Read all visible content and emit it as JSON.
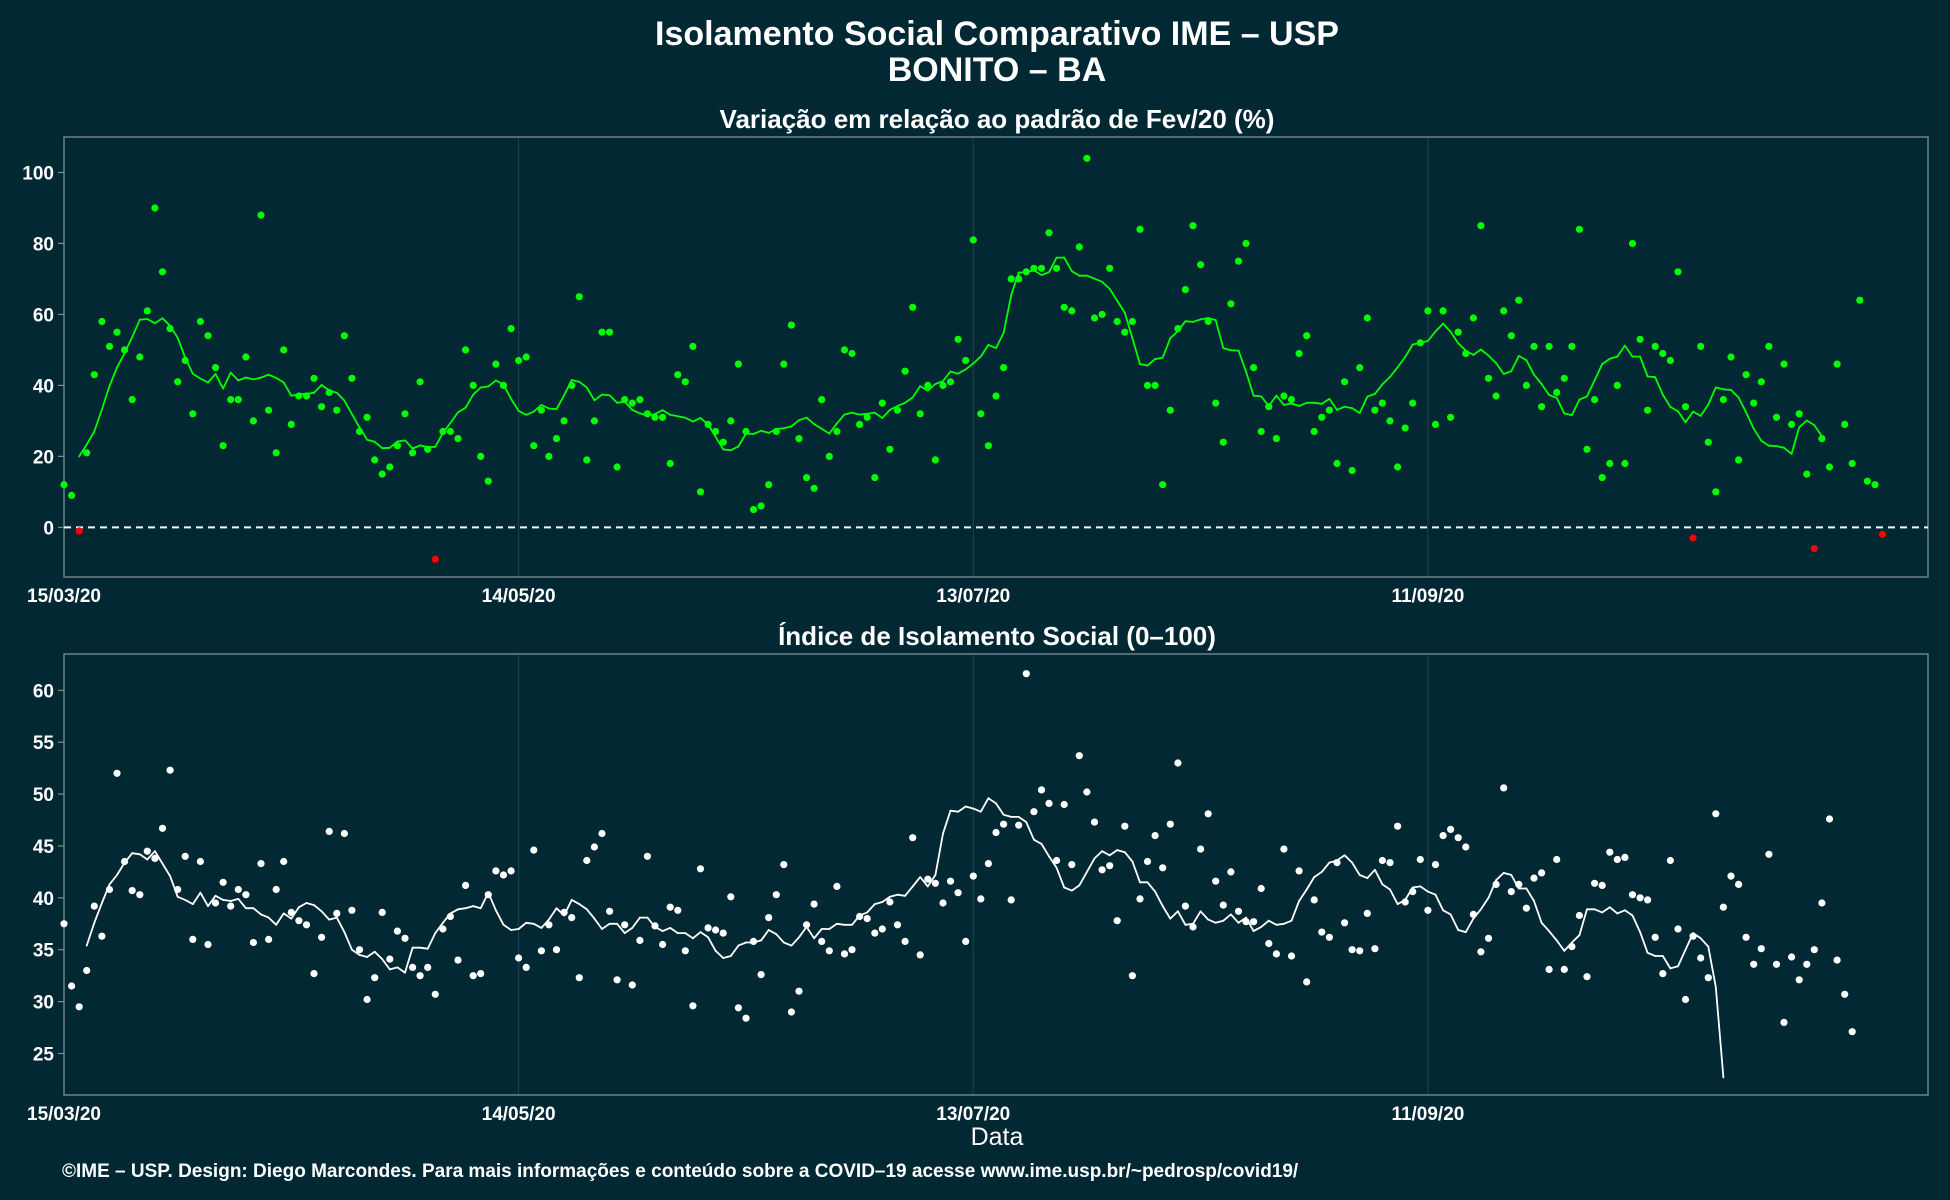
{
  "header": {
    "title_line1": "Isolamento Social Comparativo IME – USP",
    "title_line2": "BONITO – BA"
  },
  "footer": {
    "credit": "©IME – USP. Design: Diego Marcondes. Para mais informações e conteúdo sobre a COVID–19 acesse www.ime.usp.br/~pedrosp/covid19/"
  },
  "x_axis": {
    "label": "Data",
    "start_date": "2020-03-15",
    "end_date": "2020-11-16",
    "ticks": [
      {
        "date": "2020-03-15",
        "label": "15/03/20"
      },
      {
        "date": "2020-05-14",
        "label": "14/05/20"
      },
      {
        "date": "2020-07-13",
        "label": "13/07/20"
      },
      {
        "date": "2020-09-11",
        "label": "11/09/20"
      }
    ]
  },
  "colors": {
    "background": "#022833",
    "frame": "#7f8f96",
    "grid": "#1d4450",
    "positive": "#00ff00",
    "negative": "#ff0000",
    "index_series": "#ffffff",
    "zero_line": "#ffffff"
  },
  "chart_data": [
    {
      "type": "scatter",
      "title": "Variação em relação ao padrão de Fev/20 (%)",
      "xlabel": "",
      "ylabel": "",
      "ylim": [
        -14,
        110
      ],
      "yticks": [
        0,
        20,
        40,
        60,
        80,
        100
      ],
      "zero_reference_line": 0,
      "x_start": "2020-03-15",
      "point_series": [
        12,
        9,
        -1,
        21,
        43,
        58,
        51,
        55,
        50,
        36,
        48,
        61,
        90,
        72,
        56,
        41,
        47,
        32,
        58,
        54,
        45,
        23,
        36,
        36,
        48,
        30,
        88,
        33,
        21,
        50,
        29,
        37,
        37,
        42,
        34,
        38,
        33,
        54,
        42,
        27,
        31,
        19,
        15,
        17,
        23,
        32,
        21,
        41,
        22,
        -9,
        27,
        27,
        25,
        50,
        40,
        20,
        13,
        46,
        40,
        56,
        47,
        48,
        23,
        33,
        20,
        25,
        30,
        40,
        65,
        19,
        30,
        55,
        55,
        17,
        36,
        35,
        36,
        32,
        31,
        31,
        18,
        43,
        41,
        51,
        10,
        29,
        27,
        24,
        30,
        46,
        27,
        5,
        6,
        12,
        27,
        46,
        57,
        25,
        14,
        11,
        36,
        20,
        27,
        50,
        49,
        29,
        31,
        14,
        35,
        22,
        33,
        44,
        62,
        32,
        40,
        19,
        40,
        41,
        53,
        47,
        81,
        32,
        23,
        37,
        45,
        70,
        70,
        72,
        73,
        73,
        83,
        73,
        62,
        61,
        79,
        104,
        59,
        60,
        73,
        58,
        55,
        58,
        84,
        40,
        40,
        12,
        33,
        56,
        67,
        85,
        74,
        58,
        35,
        24,
        63,
        75,
        80,
        45,
        27,
        34,
        25,
        37,
        36,
        49,
        54,
        27,
        31,
        33,
        18,
        41,
        16,
        45,
        59,
        33,
        35,
        30,
        17,
        28,
        35,
        52,
        61,
        29,
        61,
        31,
        55,
        49,
        59,
        85,
        42,
        37,
        61,
        54,
        64,
        40,
        51,
        34,
        51,
        38,
        42,
        51,
        84,
        22,
        36,
        14,
        18,
        40,
        18,
        80,
        53,
        33,
        51,
        49,
        47,
        72,
        34,
        -3,
        51,
        24,
        10,
        36,
        48,
        19,
        43,
        35,
        41,
        51,
        31,
        46,
        29,
        32,
        15,
        -6,
        25,
        17,
        46,
        29,
        18,
        64,
        13,
        12,
        -2
      ],
      "moving_average_start_index": 2,
      "moving_average": [
        20.0,
        23.3,
        27.0,
        33.2,
        39.8,
        45.0,
        49.1,
        53.6,
        58.5,
        58.7,
        57.5,
        58.9,
        56.8,
        53.4,
        47.8,
        43.3,
        41.9,
        40.8,
        43.2,
        39.1,
        43.6,
        41.4,
        42.2,
        41.7,
        42.2,
        43.0,
        42.1,
        40.8,
        37.1,
        37.5,
        37.6,
        37.9,
        40.1,
        38.6,
        37.9,
        35.7,
        31.9,
        28.2,
        24.7,
        24.1,
        22.3,
        22.4,
        24.2,
        24.5,
        22.2,
        23.1,
        22.6,
        22.7,
        26.6,
        29.4,
        32.4,
        33.7,
        37.4,
        39.4,
        39.7,
        41.4,
        40.2,
        36.2,
        32.8,
        31.7,
        32.6,
        34.5,
        33.5,
        33.3,
        37.2,
        41.5,
        41.0,
        39.4,
        35.8,
        37.4,
        37.2,
        35.1,
        35.4,
        33.1,
        32.1,
        31.5,
        31.9,
        33.0,
        31.7,
        31.3,
        30.9,
        29.8,
        30.8,
        29.0,
        25.5,
        22.0,
        21.7,
        22.8,
        26.4,
        26.3,
        27.2,
        26.6,
        27.7,
        27.9,
        28.4,
        30.2,
        30.9,
        29.1,
        27.8,
        26.4,
        29.3,
        31.8,
        32.3,
        31.8,
        32.0,
        32.3,
        30.8,
        33.1,
        34.2,
        35.1,
        36.6,
        39.8,
        38.5,
        40.4,
        41.2,
        43.9,
        43.3,
        44.5,
        46.2,
        48.1,
        51.4,
        50.5,
        54.8,
        65.4,
        71.8,
        71.8,
        72.5,
        71.1,
        71.9,
        76.0,
        76.0,
        72.2,
        70.9,
        70.9,
        70.1,
        69.2,
        67.2,
        63.8,
        60.5,
        53.3,
        46.0,
        45.6,
        47.4,
        47.8,
        53.3,
        55.3,
        58.1,
        57.9,
        58.6,
        59.0,
        58.4,
        50.5,
        49.9,
        49.8,
        43.9,
        37.1,
        36.9,
        34.2,
        37.1,
        34.5,
        34.9,
        34.2,
        35.1,
        35.1,
        34.8,
        36.2,
        33.1,
        34.0,
        33.6,
        32.2,
        36.8,
        37.6,
        40.3,
        42.4,
        45.1,
        48.0,
        51.5,
        52.0,
        52.5,
        55.2,
        57.4,
        55.1,
        51.9,
        49.8,
        48.6,
        50.1,
        48.4,
        46.3,
        43.2,
        44.0,
        48.3,
        47.1,
        43.0,
        40.4,
        37.3,
        36.5,
        32.1,
        31.6,
        36.0,
        36.9,
        41.4,
        46.0,
        47.5,
        48.1,
        51.2,
        48.1,
        48.1,
        42.5,
        42.3,
        37.4,
        33.9,
        32.7,
        29.6,
        32.6,
        31.4,
        34.6,
        39.4,
        38.9,
        38.7,
        36.6,
        32.4,
        27.8,
        24.4,
        23.0,
        22.9,
        22.4,
        20.7,
        28.2,
        30.1,
        28.8,
        25.7
      ]
    },
    {
      "type": "scatter",
      "title": "Índice de Isolamento Social (0–100)",
      "xlabel": "Data",
      "ylabel": "",
      "ylim": [
        21,
        63.5
      ],
      "yticks": [
        25,
        30,
        35,
        40,
        45,
        50,
        55,
        60
      ],
      "x_start": "2020-03-15",
      "point_series": [
        37.5,
        31.5,
        29.5,
        33.0,
        39.2,
        36.3,
        40.8,
        52.0,
        43.5,
        40.7,
        40.3,
        44.5,
        43.8,
        46.7,
        52.3,
        40.8,
        44.0,
        36.0,
        43.5,
        35.5,
        39.5,
        41.5,
        39.2,
        40.8,
        40.3,
        35.7,
        43.3,
        36.0,
        40.8,
        43.5,
        38.6,
        37.8,
        37.4,
        32.7,
        36.2,
        46.4,
        38.5,
        46.2,
        38.8,
        35.0,
        30.2,
        32.3,
        38.6,
        34.1,
        36.8,
        36.1,
        33.3,
        32.5,
        33.3,
        30.7,
        37.0,
        38.2,
        34.0,
        41.2,
        32.5,
        32.7,
        40.3,
        42.6,
        42.2,
        42.6,
        34.2,
        33.3,
        44.6,
        34.9,
        37.4,
        35.0,
        38.6,
        38.1,
        32.3,
        43.6,
        44.9,
        46.2,
        38.7,
        32.1,
        37.4,
        31.6,
        35.9,
        44.0,
        37.3,
        35.5,
        39.1,
        38.8,
        34.9,
        29.6,
        42.8,
        37.1,
        36.9,
        36.6,
        40.1,
        29.4,
        28.4,
        35.8,
        32.6,
        38.1,
        40.3,
        43.2,
        29.0,
        31.0,
        37.4,
        39.4,
        35.8,
        34.9,
        41.1,
        34.6,
        35.0,
        38.2,
        38.0,
        36.6,
        37.0,
        39.6,
        37.4,
        35.8,
        45.8,
        34.5,
        41.8,
        41.4,
        39.5,
        41.6,
        40.5,
        35.8,
        42.1,
        39.9,
        43.3,
        46.3,
        47.1,
        39.8,
        47.0,
        61.6,
        48.3,
        50.4,
        49.1,
        43.6,
        49.0,
        43.2,
        53.7,
        50.2,
        47.3,
        42.7,
        43.1,
        37.8,
        46.9,
        32.5,
        39.9,
        43.5,
        46.0,
        42.9,
        47.1,
        53.0,
        39.2,
        37.2,
        44.7,
        48.1,
        41.6,
        39.3,
        42.5,
        38.7,
        37.7,
        37.7,
        40.9,
        35.6,
        34.6,
        44.7,
        34.4,
        42.6,
        31.9,
        39.8,
        36.7,
        36.2,
        43.4,
        37.6,
        35.0,
        34.9,
        38.5,
        35.1,
        43.6,
        43.4,
        46.9,
        39.6,
        40.6,
        43.7,
        38.8,
        43.2,
        46.0,
        46.6,
        45.8,
        44.9,
        38.4,
        34.8,
        36.1,
        41.3,
        50.6,
        40.6,
        41.3,
        39.0,
        41.9,
        42.4,
        33.1,
        43.7,
        33.1,
        35.3,
        38.3,
        32.4,
        41.4,
        41.2,
        44.4,
        43.7,
        43.9,
        40.3,
        40.0,
        39.8,
        36.2,
        32.7,
        43.6,
        37.0,
        30.2,
        36.3,
        34.2,
        32.3,
        48.1,
        39.1,
        42.1,
        41.3,
        36.2,
        33.6,
        35.1,
        44.2,
        33.6,
        28.0,
        34.3,
        32.1,
        33.6,
        35.0,
        39.5,
        47.6,
        34.0,
        30.7,
        27.1
      ],
      "moving_average_start_index": 3,
      "moving_average": [
        35.4,
        37.6,
        39.5,
        41.3,
        42.2,
        43.4,
        44.3,
        44.2,
        43.7,
        44.5,
        43.3,
        42.1,
        40.1,
        39.8,
        39.4,
        40.5,
        39.2,
        40.2,
        39.8,
        39.7,
        39.9,
        39.0,
        39.0,
        38.4,
        38.1,
        37.4,
        38.5,
        38.0,
        39.1,
        39.5,
        39.3,
        38.7,
        37.9,
        38.1,
        36.7,
        35.0,
        34.5,
        34.3,
        34.8,
        34.1,
        33.1,
        33.3,
        32.8,
        35.2,
        35.2,
        35.1,
        36.6,
        37.6,
        38.5,
        38.9,
        39.0,
        39.2,
        39.0,
        40.5,
        38.8,
        37.4,
        36.9,
        37.0,
        37.6,
        37.5,
        37.1,
        37.9,
        39.0,
        38.3,
        39.8,
        39.4,
        38.9,
        38.0,
        37.0,
        37.5,
        37.5,
        36.6,
        37.1,
        38.1,
        38.1,
        37.2,
        36.8,
        37.1,
        36.6,
        36.6,
        36.1,
        36.7,
        36.2,
        34.9,
        34.2,
        34.4,
        35.4,
        35.7,
        35.7,
        35.9,
        36.9,
        36.5,
        35.7,
        35.4,
        36.2,
        37.2,
        36.1,
        37.0,
        37.0,
        37.5,
        37.4,
        37.4,
        38.3,
        38.6,
        39.4,
        39.6,
        40.1,
        40.3,
        40.2,
        41.1,
        42.0,
        41.1,
        42.2,
        46.2,
        48.4,
        48.3,
        48.8,
        48.6,
        48.3,
        49.6,
        49.1,
        48.0,
        47.8,
        47.8,
        47.3,
        45.6,
        45.2,
        44.0,
        42.9,
        41.0,
        40.7,
        41.2,
        42.5,
        43.8,
        44.5,
        44.1,
        44.6,
        44.4,
        43.5,
        41.5,
        41.5,
        40.6,
        39.2,
        38.0,
        38.7,
        37.4,
        37.5,
        38.7,
        37.9,
        37.6,
        37.8,
        38.4,
        37.6,
        38.1,
        36.8,
        37.2,
        37.8,
        37.4,
        37.5,
        37.8,
        39.7,
        40.8,
        42.0,
        42.5,
        43.4,
        43.6,
        44.1,
        43.4,
        42.2,
        41.9,
        42.7,
        41.3,
        40.8,
        39.4,
        39.8,
        41.0,
        41.1,
        40.6,
        40.3,
        38.8,
        38.4,
        36.9,
        36.7,
        38.0,
        38.9,
        40.0,
        41.7,
        42.4,
        42.2,
        40.9,
        40.9,
        39.7,
        37.6,
        36.8,
        35.9,
        34.9,
        35.7,
        36.4,
        38.9,
        38.9,
        38.6,
        39.1,
        38.5,
        38.8,
        38.3,
        36.7,
        34.7,
        34.4,
        34.4,
        33.2,
        33.4,
        35.0,
        36.6,
        36.1,
        35.3,
        31.4,
        22.7
      ]
    }
  ]
}
